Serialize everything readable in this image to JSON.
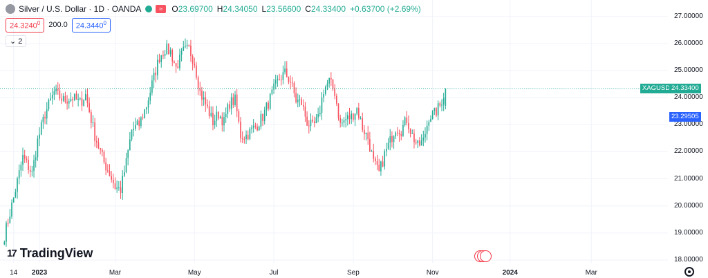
{
  "header": {
    "title": "Silver / U.S. Dollar · 1D · OANDA",
    "flag_glyph": "≈",
    "ohlc": [
      {
        "k": "O",
        "v": "23.69700"
      },
      {
        "k": "H",
        "v": "24.34050"
      },
      {
        "k": "L",
        "v": "23.56600"
      },
      {
        "k": "C",
        "v": "24.33400"
      },
      {
        "k": "",
        "v": "+0.63700 (+2.69%)"
      }
    ],
    "sell_main": "24.3240",
    "sell_sup": "0",
    "spread": "200.0",
    "buy_main": "24.3440",
    "buy_sup": "0",
    "collapse_label": "2"
  },
  "logo": {
    "mark": "17",
    "text": "TradingView"
  },
  "colors": {
    "up": "#22ab94",
    "down": "#f7525f",
    "grid": "#f0f3fa",
    "last_line": "#22ab94",
    "blue_tag": "#2962ff"
  },
  "icons": [
    "symbol-icon",
    "market-status-icon",
    "flag-icon",
    "events-icon",
    "settings-icon"
  ],
  "price_tags": {
    "symbol": "XAGUSD",
    "last": "24.33400",
    "last_value": 24.334,
    "ref": "23.29505",
    "ref_value": 23.29505
  },
  "chart_data": {
    "type": "candlestick",
    "y_axis": {
      "min": 17.9,
      "max": 27.4,
      "ticks": [
        {
          "v": 27,
          "label": "27.00000"
        },
        {
          "v": 26,
          "label": "26.00000"
        },
        {
          "v": 25,
          "label": "25.00000"
        },
        {
          "v": 24,
          "label": "24.00000"
        },
        {
          "v": 23,
          "label": "23.00000"
        },
        {
          "v": 22,
          "label": "22.00000"
        },
        {
          "v": 21,
          "label": "21.00000"
        },
        {
          "v": 20,
          "label": "20.00000"
        },
        {
          "v": 19,
          "label": "19.00000"
        },
        {
          "v": 18,
          "label": "18.00000"
        }
      ]
    },
    "x_axis": {
      "ticks": [
        {
          "label": "14",
          "bold": false,
          "index": 5
        },
        {
          "label": "2023",
          "bold": true,
          "index": 19
        },
        {
          "label": "Mar",
          "bold": false,
          "index": 60
        },
        {
          "label": "May",
          "bold": false,
          "index": 103
        },
        {
          "label": "Jul",
          "bold": false,
          "index": 146
        },
        {
          "label": "Sep",
          "bold": false,
          "index": 189
        },
        {
          "label": "Nov",
          "bold": false,
          "index": 232
        },
        {
          "label": "2024",
          "bold": true,
          "index": 274
        },
        {
          "label": "Mar",
          "bold": false,
          "index": 318
        }
      ]
    },
    "total_slots": 360,
    "anchors": [
      [
        0,
        18.9
      ],
      [
        5,
        20.3
      ],
      [
        10,
        21.8
      ],
      [
        15,
        21.2
      ],
      [
        18,
        22.4
      ],
      [
        22,
        23.4
      ],
      [
        27,
        24.2
      ],
      [
        32,
        23.9
      ],
      [
        37,
        24.0
      ],
      [
        41,
        23.8
      ],
      [
        44,
        24.1
      ],
      [
        49,
        22.6
      ],
      [
        54,
        21.6
      ],
      [
        57,
        21.2
      ],
      [
        60,
        20.7
      ],
      [
        63,
        20.6
      ],
      [
        66,
        21.6
      ],
      [
        69,
        22.8
      ],
      [
        73,
        23.0
      ],
      [
        77,
        23.7
      ],
      [
        80,
        24.5
      ],
      [
        84,
        25.5
      ],
      [
        87,
        25.8
      ],
      [
        90,
        25.7
      ],
      [
        93,
        25.1
      ],
      [
        97,
        25.7
      ],
      [
        100,
        25.8
      ],
      [
        103,
        25.3
      ],
      [
        106,
        24.2
      ],
      [
        110,
        23.6
      ],
      [
        113,
        23.1
      ],
      [
        116,
        23.4
      ],
      [
        119,
        23.1
      ],
      [
        122,
        23.8
      ],
      [
        125,
        23.9
      ],
      [
        128,
        22.6
      ],
      [
        131,
        22.6
      ],
      [
        134,
        22.8
      ],
      [
        137,
        23.0
      ],
      [
        140,
        23.3
      ],
      [
        143,
        23.8
      ],
      [
        146,
        24.3
      ],
      [
        149,
        24.7
      ],
      [
        152,
        24.9
      ],
      [
        155,
        24.6
      ],
      [
        158,
        23.9
      ],
      [
        161,
        23.8
      ],
      [
        164,
        23.1
      ],
      [
        167,
        22.9
      ],
      [
        170,
        23.2
      ],
      [
        173,
        24.3
      ],
      [
        176,
        24.6
      ],
      [
        179,
        24.2
      ],
      [
        182,
        23.0
      ],
      [
        185,
        23.2
      ],
      [
        188,
        23.3
      ],
      [
        191,
        23.6
      ],
      [
        194,
        22.9
      ],
      [
        197,
        22.5
      ],
      [
        200,
        21.6
      ],
      [
        203,
        21.2
      ],
      [
        206,
        21.9
      ],
      [
        209,
        22.4
      ],
      [
        212,
        22.9
      ],
      [
        215,
        22.8
      ],
      [
        218,
        23.2
      ],
      [
        221,
        22.6
      ],
      [
        224,
        22.2
      ],
      [
        227,
        22.4
      ],
      [
        230,
        23.3
      ],
      [
        233,
        23.4
      ],
      [
        236,
        23.7
      ],
      [
        239,
        24.33
      ]
    ],
    "ohlc_last": {
      "o": 23.697,
      "h": 24.3405,
      "l": 23.566,
      "c": 24.334
    }
  }
}
